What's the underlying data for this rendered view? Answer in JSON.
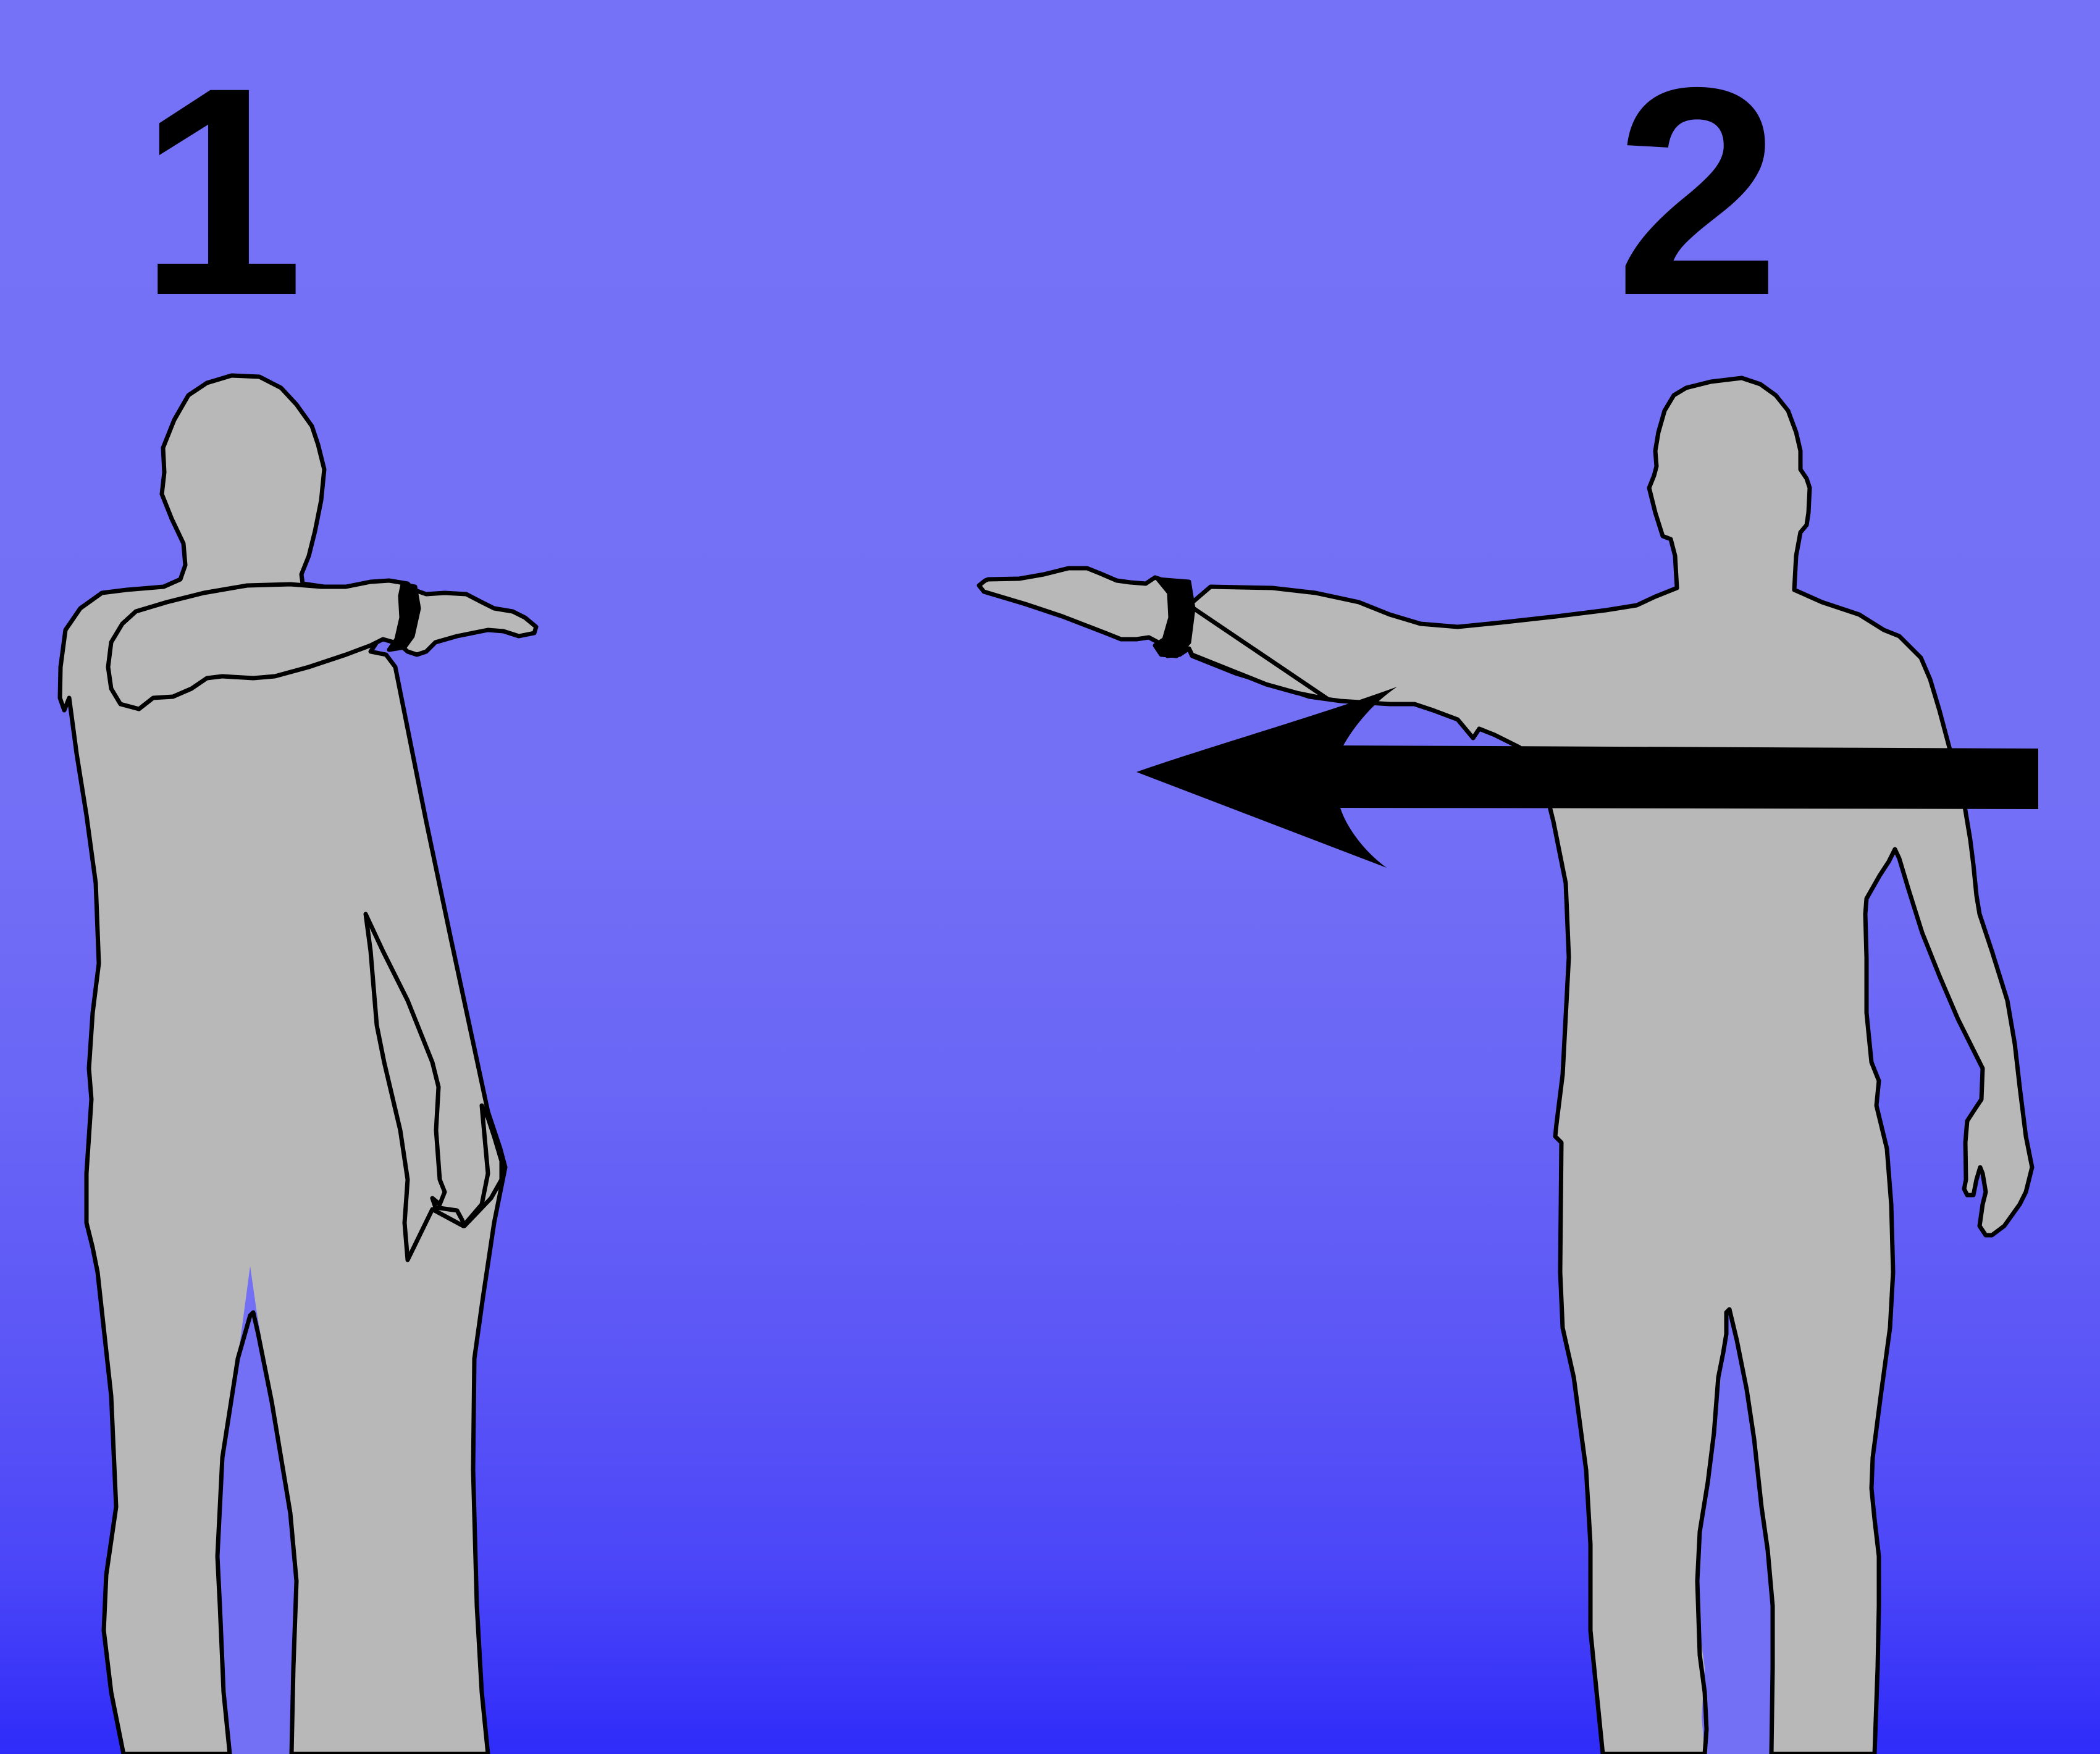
{
  "steps": [
    {
      "number": "1"
    },
    {
      "number": "2"
    }
  ],
  "colors": {
    "figure_fill": "#b8b8b8",
    "outline": "#000000",
    "arrow": "#000000",
    "background_top": "#7672f7",
    "background_bottom": "#2f2bf9"
  },
  "icons": {
    "figure": "person-silhouette",
    "arrow": "arrow-left"
  }
}
